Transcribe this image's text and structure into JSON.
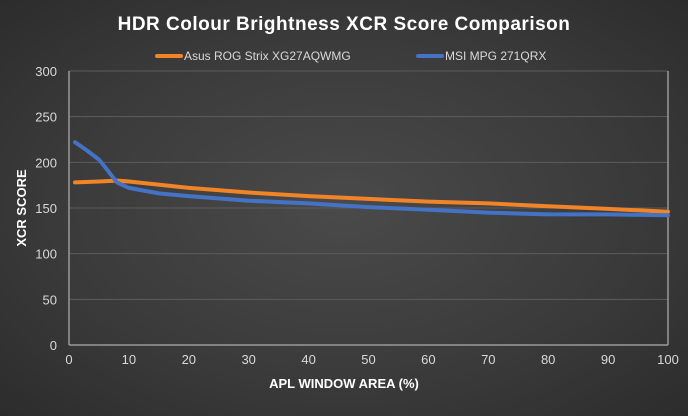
{
  "chart_data": {
    "type": "line",
    "title": "HDR Colour Brightness XCR Score Comparison",
    "xlabel": "APL WINDOW AREA (%)",
    "ylabel": "XCR SCORE",
    "xlim": [
      0,
      100
    ],
    "ylim": [
      0,
      300
    ],
    "xticks": [
      0,
      10,
      20,
      30,
      40,
      50,
      60,
      70,
      80,
      90,
      100
    ],
    "yticks": [
      0,
      50,
      100,
      150,
      200,
      250,
      300
    ],
    "grid": "horizontal",
    "legend": "top",
    "series": [
      {
        "name": "Asus ROG Strix XG27AQWMG",
        "color": "#f28428",
        "x": [
          1,
          5,
          8,
          10,
          20,
          30,
          40,
          50,
          60,
          70,
          80,
          90,
          100
        ],
        "y": [
          178,
          179,
          180,
          179,
          172,
          167,
          163,
          160,
          157,
          155,
          152,
          149,
          146
        ]
      },
      {
        "name": "MSI MPG 271QRX",
        "color": "#4472c4",
        "x": [
          1,
          3,
          5,
          6,
          8,
          10,
          15,
          20,
          30,
          40,
          50,
          60,
          70,
          80,
          90,
          100
        ],
        "y": [
          222,
          213,
          203,
          195,
          178,
          172,
          166,
          163,
          158,
          155,
          151,
          148,
          145,
          143,
          143,
          142
        ]
      }
    ]
  }
}
